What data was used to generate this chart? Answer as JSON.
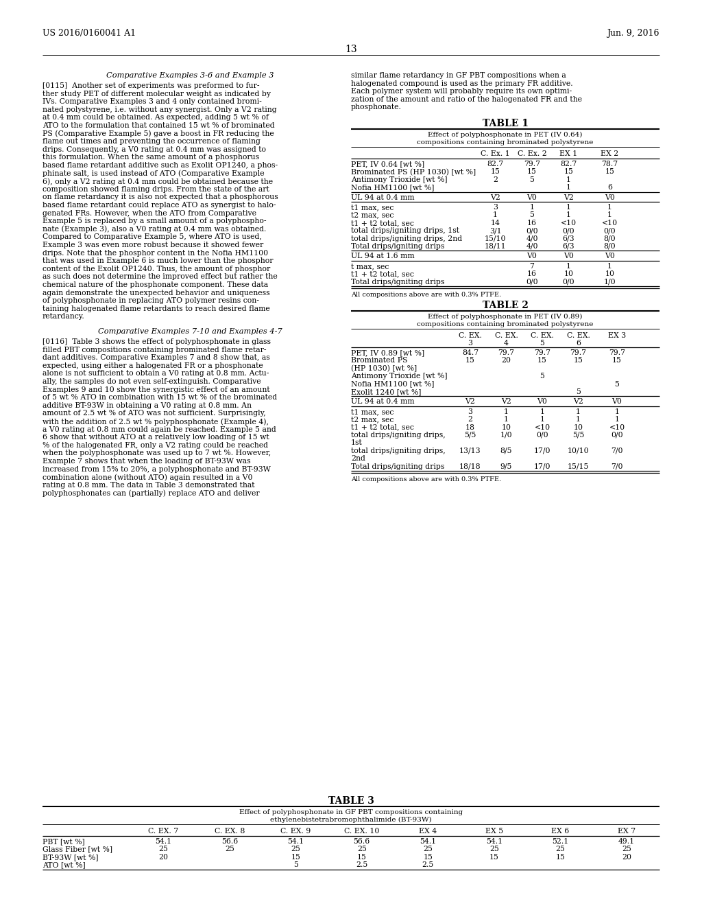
{
  "header_left": "US 2016/0160041 A1",
  "header_right": "Jun. 9, 2016",
  "page_num": "13",
  "bg_color": "#ffffff",
  "text_color": "#000000",
  "left_col_heading1": "Comparative Examples 3-6 and Example 3",
  "left_col_para1": [
    "[0115]  Another set of experiments was preformed to fur-",
    "ther study PET of different molecular weight as indicated by",
    "IVs. Comparative Examples 3 and 4 only contained bromi-",
    "nated polystyrene, i.e. without any synergist. Only a V2 rating",
    "at 0.4 mm could be obtained. As expected, adding 5 wt % of",
    "ATO to the formulation that contained 15 wt % of brominated",
    "PS (Comparative Example 5) gave a boost in FR reducing the",
    "flame out times and preventing the occurrence of flaming",
    "drips. Consequently, a V0 rating at 0.4 mm was assigned to",
    "this formulation. When the same amount of a phosphorus",
    "based flame retardant additive such as Exolit OP1240, a phos-",
    "phinate salt, is used instead of ATO (Comparative Example",
    "6), only a V2 rating at 0.4 mm could be obtained because the",
    "composition showed flaming drips. From the state of the art",
    "on flame retardancy it is also not expected that a phosphorous",
    "based flame retardant could replace ATO as synergist to halo-",
    "genated FRs. However, when the ATO from Comparative",
    "Example 5 is replaced by a small amount of a polyphospho-",
    "nate (Example 3), also a V0 rating at 0.4 mm was obtained.",
    "Compared to Comparative Example 5, where ATO is used,",
    "Example 3 was even more robust because it showed fewer",
    "drips. Note that the phosphor content in the Nofia HM1100",
    "that was used in Example 6 is much lower than the phosphor",
    "content of the Exolit OP1240. Thus, the amount of phosphor",
    "as such does not determine the improved effect but rather the",
    "chemical nature of the phosphonate component. These data",
    "again demonstrate the unexpected behavior and uniqueness",
    "of polyphosphonate in replacing ATO polymer resins con-",
    "taining halogenated flame retardants to reach desired flame",
    "retardancy."
  ],
  "left_col_heading2": "Comparative Examples 7-10 and Examples 4-7",
  "left_col_para2": [
    "[0116]  Table 3 shows the effect of polyphosphonate in glass",
    "filled PBT compositions containing brominated flame retar-",
    "dant additives. Comparative Examples 7 and 8 show that, as",
    "expected, using either a halogenated FR or a phosphonate",
    "alone is not sufficient to obtain a V0 rating at 0.8 mm. Actu-",
    "ally, the samples do not even self-extinguish. Comparative",
    "Examples 9 and 10 show the synergistic effect of an amount",
    "of 5 wt % ATO in combination with 15 wt % of the brominated",
    "additive BT-93W in obtaining a V0 rating at 0.8 mm. An",
    "amount of 2.5 wt % of ATO was not sufficient. Surprisingly,",
    "with the addition of 2.5 wt % polyphosphonate (Example 4),",
    "a V0 rating at 0.8 mm could again be reached. Example 5 and",
    "6 show that without ATO at a relatively low loading of 15 wt",
    "% of the halogenated FR, only a V2 rating could be reached",
    "when the polyphosphonate was used up to 7 wt %. However,",
    "Example 7 shows that when the loading of BT-93W was",
    "increased from 15% to 20%, a polyphosphonate and BT-93W",
    "combination alone (without ATO) again resulted in a V0",
    "rating at 0.8 mm. The data in Table 3 demonstrated that",
    "polyphosphonates can (partially) replace ATO and deliver"
  ],
  "right_col_intro": [
    "similar flame retardancy in GF PBT compositions when a",
    "halogenated compound is used as the primary FR additive.",
    "Each polymer system will probably require its own optimi-",
    "zation of the amount and ratio of the halogenated FR and the",
    "phosphonate."
  ],
  "table1_title": "TABLE 1",
  "table1_subtitle1": "Effect of polyphosphonate in PET (IV 0.64)",
  "table1_subtitle2": "compositions containing brominated polystyrene",
  "table1_col_headers": [
    "",
    "C. Ex. 1",
    "C. Ex. 2",
    "EX 1",
    "EX 2"
  ],
  "table1_rows": [
    [
      "PET, IV 0.64 [wt %]",
      "82.7",
      "79.7",
      "82.7",
      "78.7"
    ],
    [
      "Brominated PS (HP 1030) [wt %]",
      "15",
      "15",
      "15",
      "15"
    ],
    [
      "Antimony Trioxide [wt %]",
      "2",
      "5",
      "1",
      ""
    ],
    [
      "Nofia HM1100 [wt %]",
      "",
      "",
      "1",
      "6"
    ],
    [
      "UL 94 at 0.4 mm",
      "V2",
      "V0",
      "V2",
      "V0"
    ],
    [
      "t1 max, sec",
      "3",
      "1",
      "1",
      "1"
    ],
    [
      "t2 max, sec",
      "1",
      "5",
      "1",
      "1"
    ],
    [
      "t1 + t2 total, sec",
      "14",
      "16",
      "<10",
      "<10"
    ],
    [
      "total drips/igniting drips, 1st",
      "3/1",
      "0/0",
      "0/0",
      "0/0"
    ],
    [
      "total drips/igniting drips, 2nd",
      "15/10",
      "4/0",
      "6/3",
      "8/0"
    ],
    [
      "Total drips/igniting drips",
      "18/11",
      "4/0",
      "6/3",
      "8/0"
    ],
    [
      "UL 94 at 1.6 mm",
      "",
      "V0",
      "V0",
      "V0"
    ],
    [
      "t max, sec",
      "",
      "7",
      "1",
      "1"
    ],
    [
      "t1 + t2 total, sec",
      "",
      "16",
      "10",
      "10"
    ],
    [
      "Total drips/igniting drips",
      "",
      "0/0",
      "0/0",
      "1/0"
    ]
  ],
  "table1_thick_before": [
    0,
    4,
    5,
    11,
    12
  ],
  "table1_thick_after": [
    14
  ],
  "table1_footnote": "All compositions above are with 0.3% PTFE.",
  "table2_title": "TABLE 2",
  "table2_subtitle1": "Effect of polyphosphonate in PET (IV 0.89)",
  "table2_subtitle2": "compositions containing brominated polystyrene",
  "table2_col_headers": [
    "",
    "C. EX.\n3",
    "C. EX.\n4",
    "C. EX.\n5",
    "C. EX.\n6",
    "EX 3"
  ],
  "table2_rows": [
    [
      "PET, IV 0.89 [wt %]",
      "84.7",
      "79.7",
      "79.7",
      "79.7",
      "79.7"
    ],
    [
      "Brominated PS\n(HP 1030) [wt %]",
      "15",
      "20",
      "15",
      "15",
      "15"
    ],
    [
      "Antimony Trioxide [wt %]",
      "",
      "",
      "5",
      "",
      ""
    ],
    [
      "Nofia HM1100 [wt %]",
      "",
      "",
      "",
      "",
      "5"
    ],
    [
      "Exolit 1240 [wt %]",
      "",
      "",
      "",
      "5",
      ""
    ],
    [
      "UL 94 at 0.4 mm",
      "V2",
      "V2",
      "V0",
      "V2",
      "V0"
    ],
    [
      "t1 max, sec",
      "3",
      "1",
      "1",
      "1",
      "1"
    ],
    [
      "t2 max, sec",
      "2",
      "1",
      "1",
      "1",
      "1"
    ],
    [
      "t1 + t2 total, sec",
      "18",
      "10",
      "<10",
      "10",
      "<10"
    ],
    [
      "total drips/igniting drips,\n1st",
      "5/5",
      "1/0",
      "0/0",
      "5/5",
      "0/0"
    ],
    [
      "total drips/igniting drips,\n2nd",
      "13/13",
      "8/5",
      "17/0",
      "10/10",
      "7/0"
    ],
    [
      "Total drips/igniting drips",
      "18/18",
      "9/5",
      "17/0",
      "15/15",
      "7/0"
    ]
  ],
  "table2_thick_before": [
    0,
    5,
    6
  ],
  "table2_thick_after": [
    11
  ],
  "table2_footnote": "All compositions above are with 0.3% PTFE.",
  "table3_title": "TABLE 3",
  "table3_subtitle1": "Effect of polyphosphonate in GF PBT compositions containing",
  "table3_subtitle2": "ethylenebistetrabromophthalimide (BT-93W)",
  "table3_col_headers": [
    "",
    "C. EX. 7",
    "C. EX. 8",
    "C. EX. 9",
    "C. EX. 10",
    "EX 4",
    "EX 5",
    "EX 6",
    "EX 7"
  ],
  "table3_rows": [
    [
      "PBT [wt %]",
      "54.1",
      "56.6",
      "54.1",
      "56.6",
      "54.1",
      "54.1",
      "52.1",
      "49.1"
    ],
    [
      "Glass Fiber [wt %]",
      "25",
      "25",
      "25",
      "25",
      "25",
      "25",
      "25",
      "25"
    ],
    [
      "BT-93W [wt %]",
      "20",
      "",
      "15",
      "15",
      "15",
      "15",
      "15",
      "20"
    ],
    [
      "ATO [wt %]",
      "",
      "",
      "5",
      "2.5",
      "2.5",
      "",
      "",
      ""
    ]
  ],
  "table3_thick_before": [
    0
  ],
  "table3_thick_after": [
    3
  ]
}
